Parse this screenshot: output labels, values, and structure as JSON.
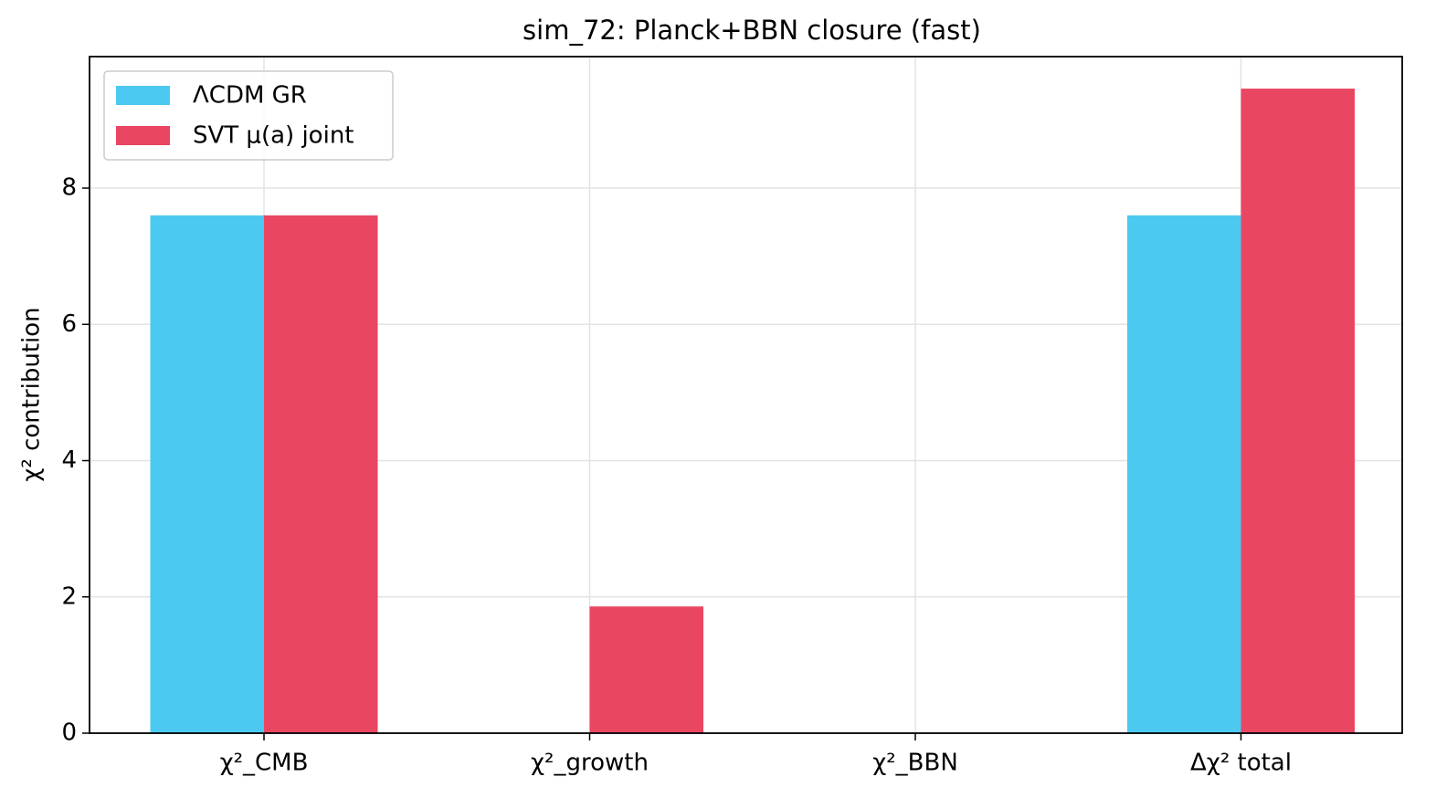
{
  "chart_data": {
    "type": "bar",
    "title": "sim_72: Planck+BBN closure (fast)",
    "y_label": "χ² contribution",
    "categories": [
      "χ²_CMB",
      "χ²_growth",
      "χ²_BBN",
      "Δχ² total"
    ],
    "series": [
      {
        "name": "ΛCDM GR",
        "color": "#4cc9f0",
        "values": [
          7.6,
          0,
          0,
          7.6
        ]
      },
      {
        "name": "SVT μ(a) joint",
        "color": "#e84661",
        "values": [
          7.6,
          1.86,
          0,
          9.46
        ]
      }
    ],
    "ylim": [
      0,
      9.93
    ],
    "yticks": [
      0,
      2,
      4,
      6,
      8
    ],
    "grid": true,
    "legend": "upper left"
  }
}
